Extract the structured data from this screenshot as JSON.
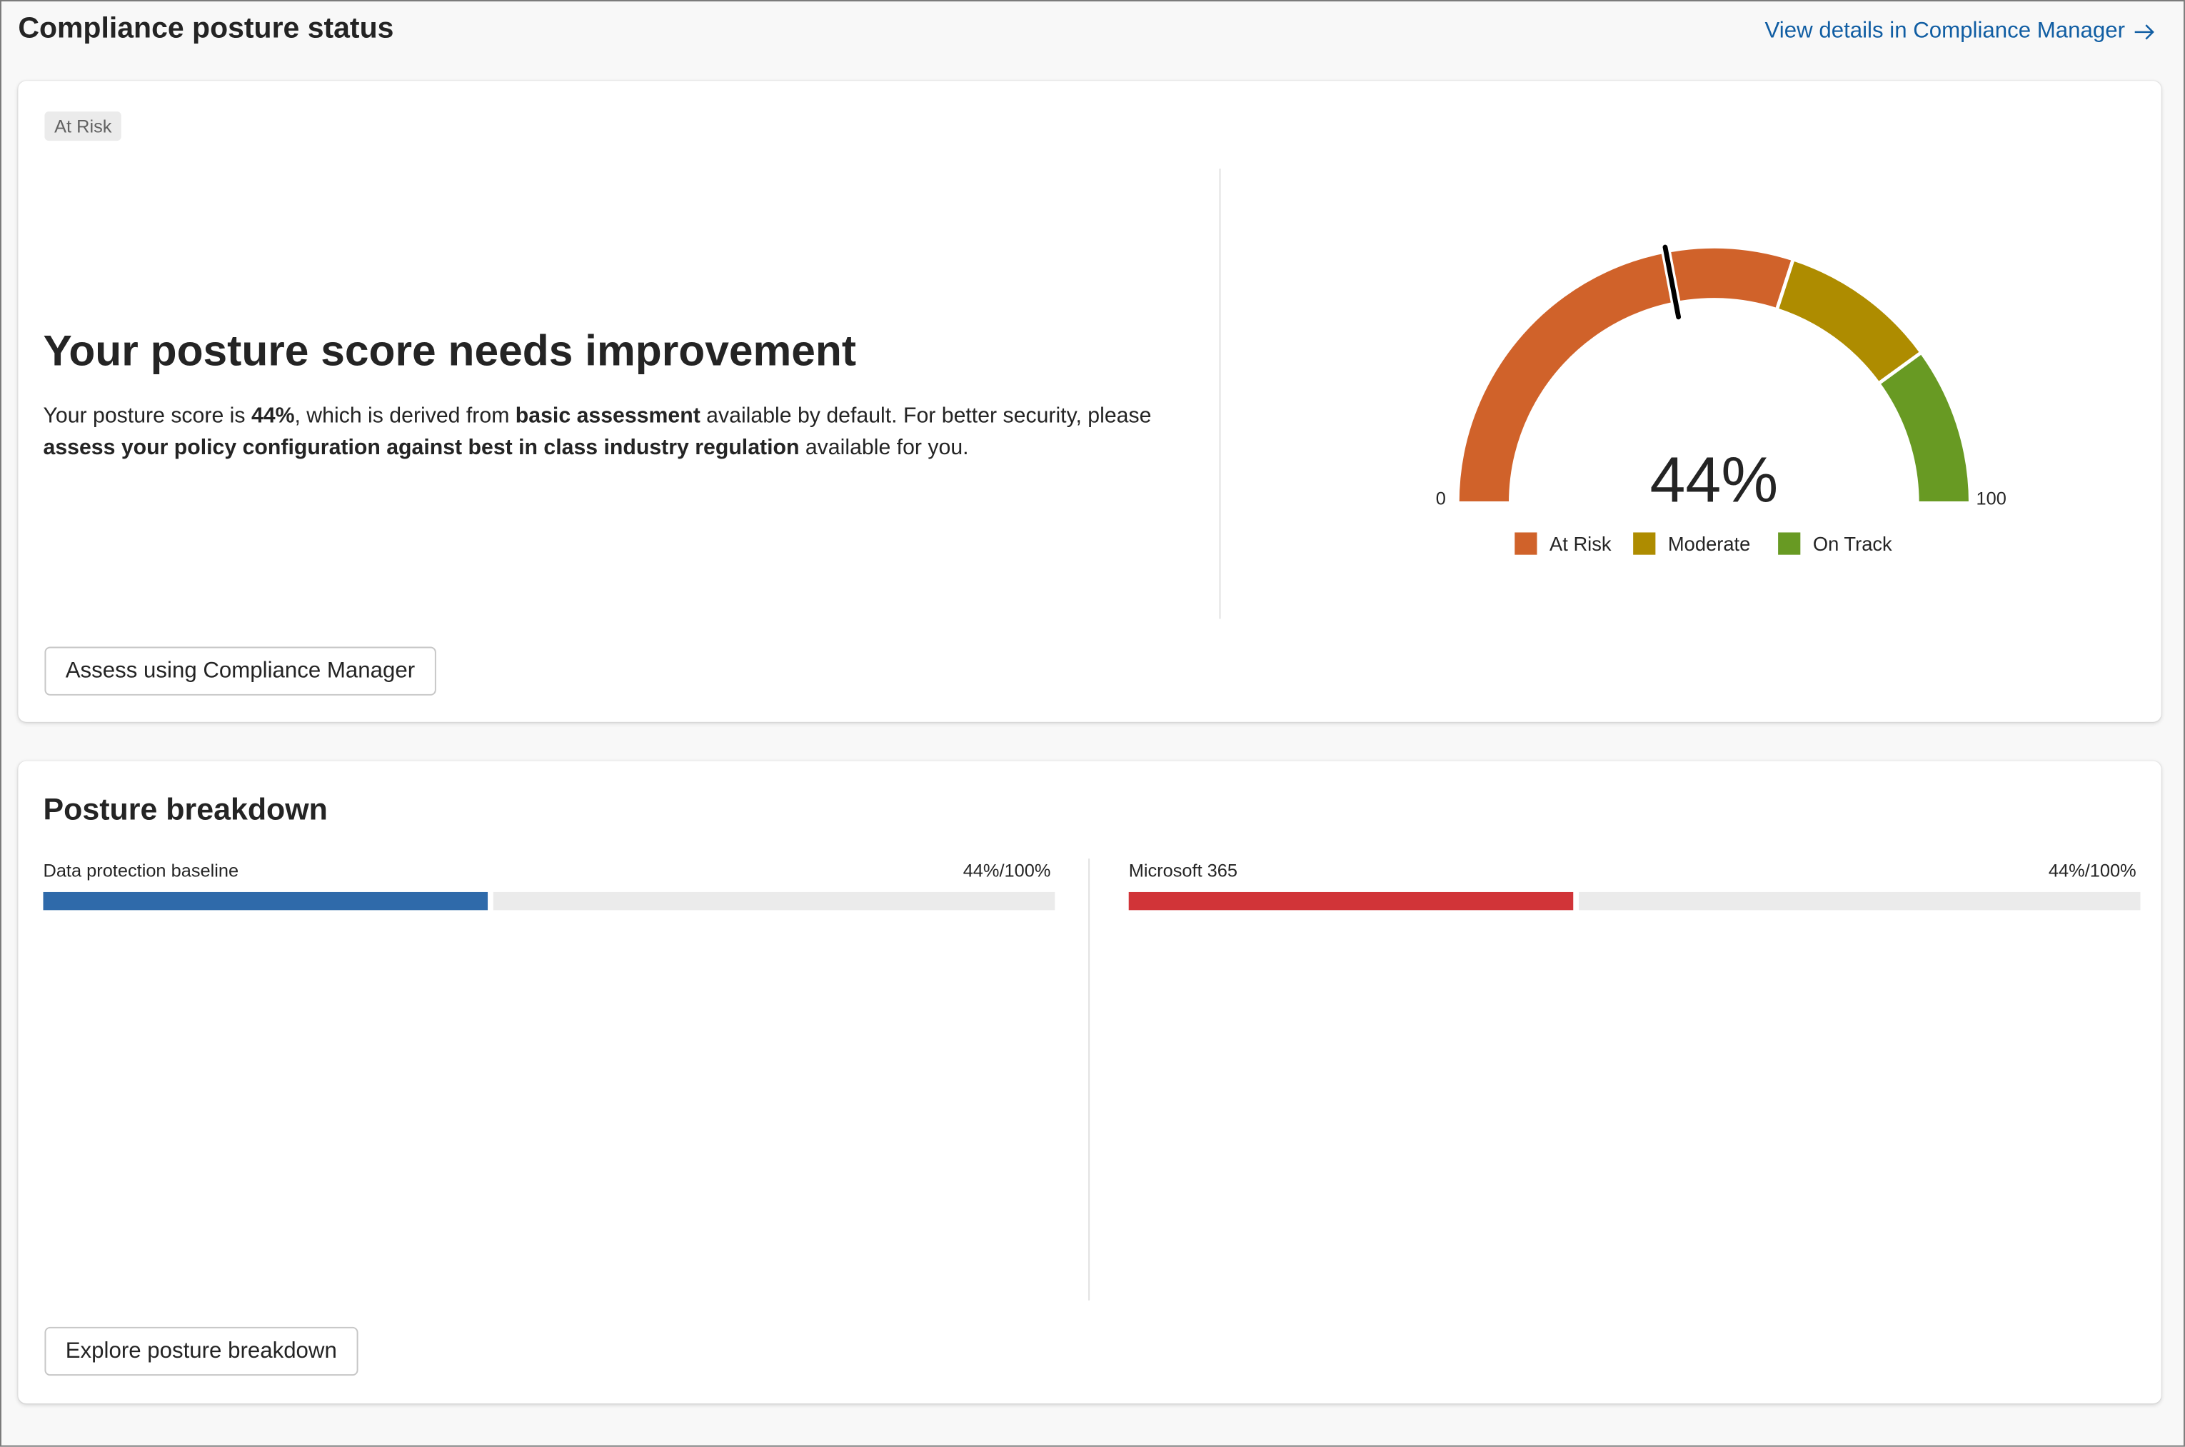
{
  "header": {
    "title": "Compliance posture status",
    "link_label": "View details in Compliance Manager",
    "link_icon": "arrow-right-icon",
    "link_color": "#115ea3"
  },
  "status_card": {
    "badge": "At Risk",
    "heading": "Your posture score needs improvement",
    "paragraph": [
      {
        "text": "Your posture score is ",
        "bold": false
      },
      {
        "text": "44%",
        "bold": true
      },
      {
        "text": ", which is derived from ",
        "bold": false
      },
      {
        "text": "basic assessment",
        "bold": true
      },
      {
        "text": " available by default. For better security, please ",
        "bold": false
      },
      {
        "text": "assess your policy configuration against best in class industry regulation",
        "bold": true
      },
      {
        "text": " available for you.",
        "bold": false
      }
    ],
    "button_label": "Assess using Compliance Manager",
    "gauge": {
      "value": 44,
      "value_label": "44%",
      "min_label": "0",
      "max_label": "100",
      "min": 0,
      "max": 100,
      "segments": [
        {
          "name": "At Risk",
          "from": 0,
          "to": 60,
          "color": "#d0622a"
        },
        {
          "name": "Moderate",
          "from": 60,
          "to": 80,
          "color": "#ae8c00"
        },
        {
          "name": "On Track",
          "from": 80,
          "to": 100,
          "color": "#689a23"
        }
      ]
    }
  },
  "breakdown_card": {
    "title": "Posture breakdown",
    "items": [
      {
        "label": "Data protection baseline",
        "value_label": "44%/100%",
        "percent": 44,
        "color": "#2f6aaa"
      },
      {
        "label": "Microsoft 365",
        "value_label": "44%/100%",
        "percent": 44,
        "color": "#d13438"
      }
    ],
    "button_label": "Explore posture breakdown"
  }
}
